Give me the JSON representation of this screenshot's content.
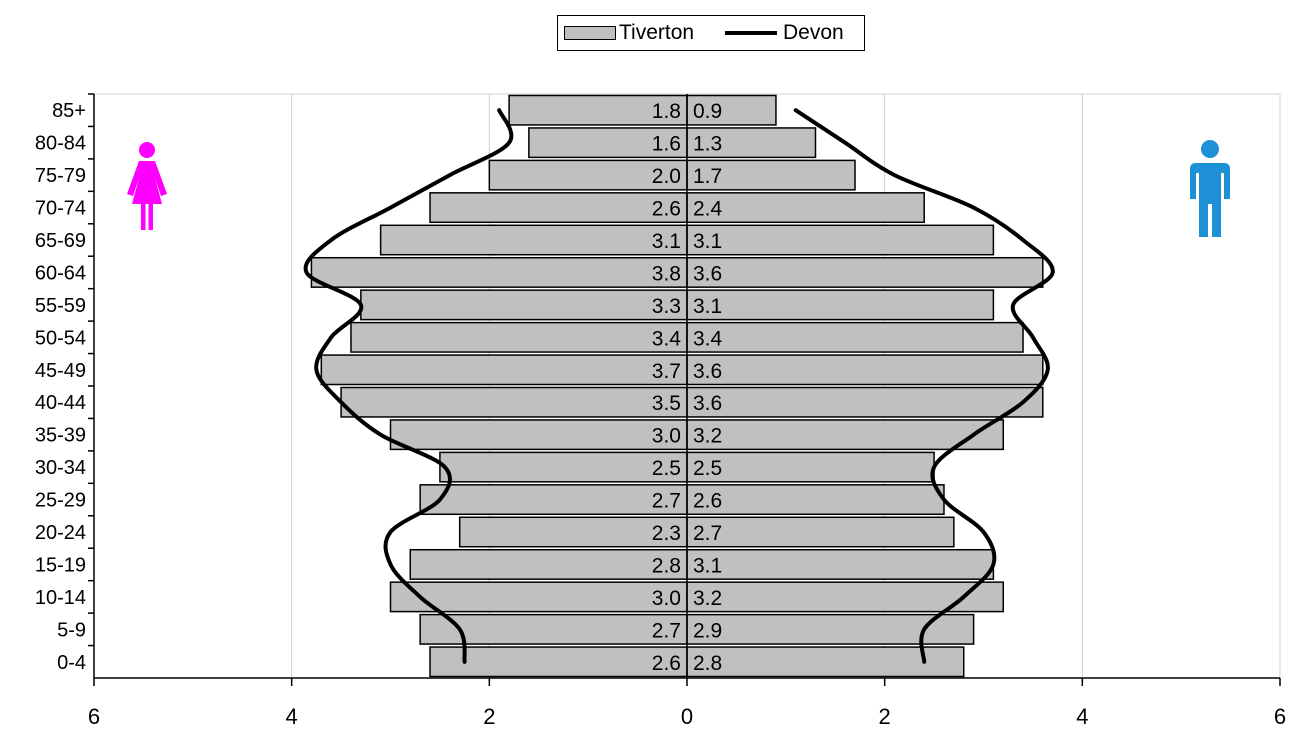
{
  "legend": {
    "tiverton_label": "Tiverton",
    "devon_label": "Devon"
  },
  "icons": {
    "female": "female-figure-icon",
    "male": "male-figure-icon"
  },
  "colors": {
    "bar_fill": "#c0c0c0",
    "bar_stroke": "#000000",
    "devon_line": "#000000",
    "female_icon": "#ff00ff",
    "male_icon": "#1e90d6",
    "gridline": "#d0d0d0"
  },
  "chart_data": {
    "type": "bar",
    "orientation": "horizontal-population-pyramid",
    "categories": [
      "85+",
      "80-84",
      "75-79",
      "70-74",
      "65-69",
      "60-64",
      "55-59",
      "50-54",
      "45-49",
      "40-44",
      "35-39",
      "30-34",
      "25-29",
      "20-24",
      "15-19",
      "10-14",
      "5-9",
      "0-4"
    ],
    "series": [
      {
        "name": "Tiverton",
        "side": "female-left",
        "values": [
          1.8,
          1.6,
          2.0,
          2.6,
          3.1,
          3.8,
          3.3,
          3.4,
          3.7,
          3.5,
          3.0,
          2.5,
          2.7,
          2.3,
          2.8,
          3.0,
          2.7,
          2.6
        ],
        "labels": [
          "1.8",
          "1.6",
          "2.0",
          "2.6",
          "3.1",
          "3.8",
          "3.3",
          "3.4",
          "3.7",
          "3.5",
          "3.0",
          "2.5",
          "2.7",
          "2.3",
          "2.8",
          "3.0",
          "2.7",
          "2.6"
        ]
      },
      {
        "name": "Tiverton",
        "side": "male-right",
        "values": [
          0.9,
          1.3,
          1.7,
          2.4,
          3.1,
          3.6,
          3.1,
          3.4,
          3.6,
          3.6,
          3.2,
          2.5,
          2.6,
          2.7,
          3.1,
          3.2,
          2.9,
          2.8
        ],
        "labels": [
          "0.9",
          "1.3",
          "1.7",
          "2.4",
          "3.1",
          "3.6",
          "3.1",
          "3.4",
          "3.6",
          "3.6",
          "3.2",
          "2.5",
          "2.6",
          "2.7",
          "3.1",
          "3.2",
          "2.9",
          "2.8"
        ]
      },
      {
        "name": "Devon",
        "side": "female-left",
        "type": "line",
        "values": [
          1.9,
          1.8,
          2.4,
          3.0,
          3.6,
          3.85,
          3.3,
          3.6,
          3.75,
          3.5,
          3.1,
          2.45,
          2.5,
          3.0,
          3.0,
          2.7,
          2.3,
          2.25
        ]
      },
      {
        "name": "Devon",
        "side": "male-right",
        "type": "line",
        "values": [
          1.1,
          1.6,
          2.1,
          2.9,
          3.4,
          3.7,
          3.3,
          3.5,
          3.65,
          3.4,
          2.9,
          2.5,
          2.6,
          3.0,
          3.1,
          2.8,
          2.4,
          2.4
        ]
      }
    ],
    "xlim": [
      -6,
      6
    ],
    "x_ticks": [
      -6,
      -4,
      -2,
      0,
      2,
      4,
      6
    ],
    "x_tick_labels": [
      "6",
      "4",
      "2",
      "0",
      "2",
      "4",
      "6"
    ],
    "grid": "vertical",
    "legend_position": "top-center"
  }
}
